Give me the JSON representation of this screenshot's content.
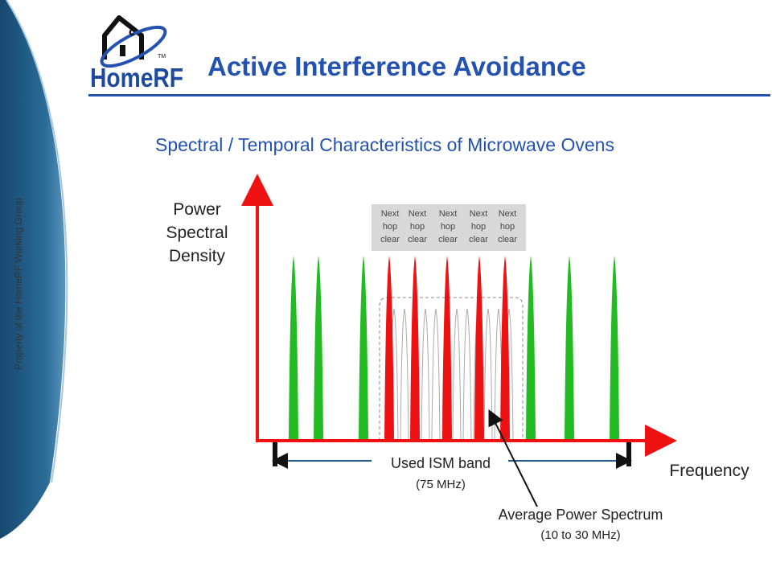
{
  "header": {
    "title": "Active Interference Avoidance",
    "logo_text": "HomeRF",
    "logo_tm": "TM"
  },
  "subtitle": "Spectral / Temporal Characteristics of Microwave Ovens",
  "vertical_caption": "Property of the HomeRF Working Group",
  "diagram": {
    "y_axis_label": [
      "Power",
      "Spectral",
      "Density"
    ],
    "x_axis_label": "Frequency",
    "band_label": "Used ISM band",
    "band_width": "(75 MHz)",
    "avg_label": "Average Power Spectrum",
    "avg_range": "(10 to 30 MHz)",
    "hop_labels": [
      [
        "Next",
        "hop",
        "clear"
      ],
      [
        "Next",
        "hop",
        "clear"
      ],
      [
        "Next",
        "hop",
        "clear"
      ],
      [
        "Next",
        "hop",
        "clear"
      ],
      [
        "Next",
        "hop",
        "clear"
      ]
    ]
  },
  "colors": {
    "title": "#2352b0",
    "green_hop": "#22bb22",
    "red_hop": "#ee1111",
    "axis": "#ee1111",
    "band": "#1e5a8c",
    "ghost_hop": "#aaaaaa"
  },
  "icons": [
    "house-logo-icon",
    "arrow-icon"
  ]
}
